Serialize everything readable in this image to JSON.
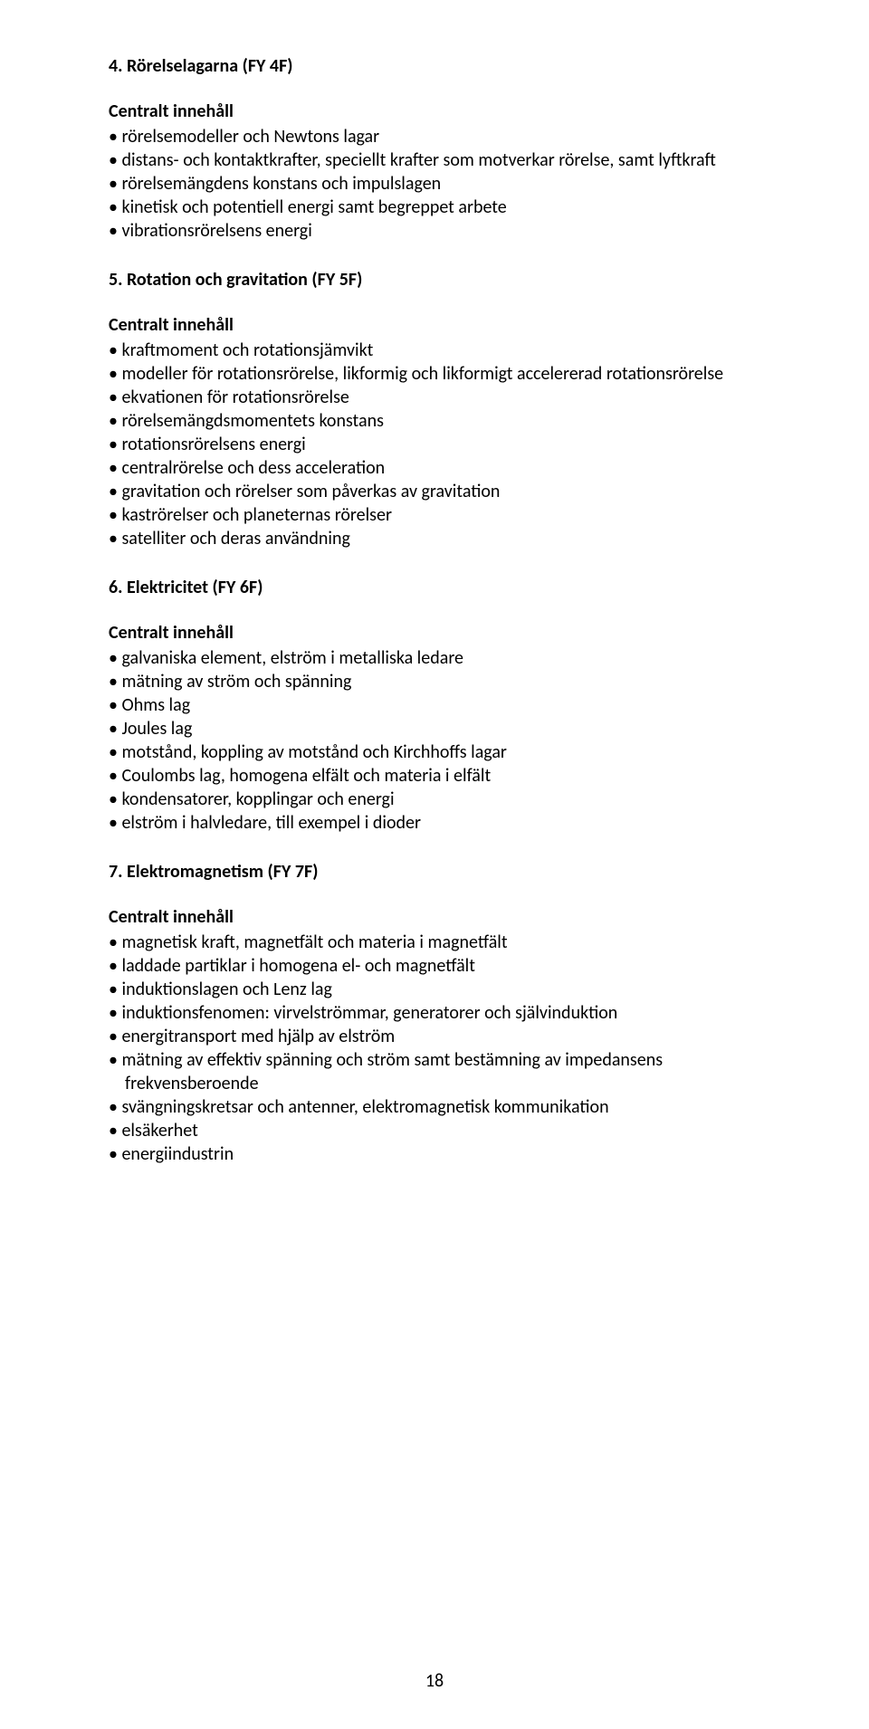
{
  "page": {
    "number": "18"
  },
  "sections": [
    {
      "title": "4. Rörelselagarna (FY 4F)",
      "subhead": "Centralt innehåll",
      "items": [
        "rörelsemodeller och Newtons lagar",
        "distans- och kontaktkrafter, speciellt krafter som motverkar rörelse, samt lyftkraft",
        "rörelsemängdens konstans och impulslagen",
        "kinetisk och potentiell energi samt begreppet arbete",
        "vibrationsrörelsens energi"
      ]
    },
    {
      "title": "5. Rotation och gravitation (FY 5F)",
      "subhead": "Centralt innehåll",
      "items": [
        "kraftmoment och rotationsjämvikt",
        "modeller för rotationsrörelse, likformig och likformigt accelererad rotationsrörelse",
        "ekvationen för rotationsrörelse",
        "rörelsemängdsmomentets konstans",
        "rotationsrörelsens energi",
        "centralrörelse och dess acceleration",
        "gravitation och rörelser som påverkas av gravitation",
        "kaströrelser och planeternas rörelser",
        "satelliter och deras användning"
      ]
    },
    {
      "title": "6. Elektricitet (FY 6F)",
      "subhead": "Centralt innehåll",
      "items": [
        "galvaniska element, elström i metalliska ledare",
        "mätning av ström och spänning",
        "Ohms lag",
        "Joules lag",
        "motstånd, koppling av motstånd och Kirchhoffs lagar",
        "Coulombs lag, homogena elfält och materia i elfält",
        "kondensatorer, kopplingar och energi",
        "elström i halvledare, till exempel i dioder"
      ]
    },
    {
      "title": "7. Elektromagnetism (FY 7F)",
      "subhead": "Centralt innehåll",
      "items": [
        "magnetisk kraft, magnetfält och materia i magnetfält",
        "laddade partiklar i homogena el- och magnetfält",
        "induktionslagen och Lenz lag",
        "induktionsfenomen: virvelströmmar, generatorer och självinduktion",
        "energitransport med hjälp av elström",
        "mätning av effektiv spänning och ström samt bestämning av impedansens frekvensberoende",
        "svängningskretsar och antenner, elektromagnetisk kommunikation",
        "elsäkerhet",
        "energiindustrin"
      ]
    }
  ]
}
